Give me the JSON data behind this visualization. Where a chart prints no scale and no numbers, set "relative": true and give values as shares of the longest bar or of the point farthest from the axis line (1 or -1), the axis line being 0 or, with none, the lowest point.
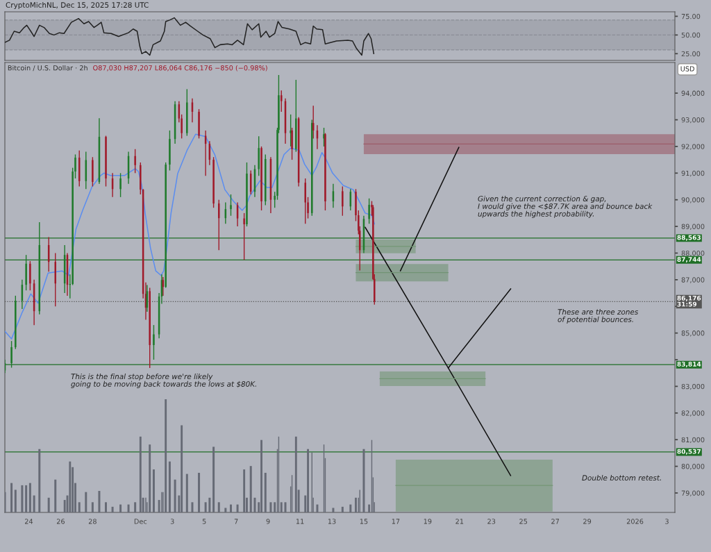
{
  "chart_data": [
    {
      "type": "line",
      "xlim": [
        "2025-11-22T12:00",
        "2026-01-03T12:00"
      ],
      "ylim": [
        16,
        81
      ],
      "yticks": [
        {
          "value": 75,
          "label": "75.00"
        },
        {
          "value": 50,
          "label": "50.00"
        },
        {
          "value": 25,
          "label": "25.00"
        }
      ],
      "tick_labels": "y",
      "bands": [
        {
          "axis": "y",
          "from": 30,
          "to": 70,
          "color": "#a3a6af"
        }
      ],
      "ref_lines": [
        {
          "axis": "y",
          "value": 70,
          "line_style": "dashed",
          "color": "#8a8d96"
        },
        {
          "axis": "y",
          "value": 50,
          "line_style": "dashed",
          "color": "#8a8d96"
        },
        {
          "axis": "y",
          "value": 30,
          "line_style": "dashed",
          "color": "#8a8d96"
        }
      ],
      "series": [
        {
          "color": "#222222",
          "x": [
            "2025-11-22T12:00",
            "2025-11-22T19:00",
            "2025-11-23T02:00",
            "2025-11-23T10:00",
            "2025-11-23T17:00",
            "2025-11-23T21:00",
            "2025-11-24T03:00",
            "2025-11-24T08:00",
            "2025-11-24T16:00",
            "2025-11-24T23:00",
            "2025-11-25T07:00",
            "2025-11-25T14:00",
            "2025-11-25T22:00",
            "2025-11-26T05:00",
            "2025-11-26T16:00",
            "2025-11-27T03:00",
            "2025-11-27T11:00",
            "2025-11-27T18:00",
            "2025-11-28T02:00",
            "2025-11-28T07:00",
            "2025-11-28T13:00",
            "2025-11-28T17:00",
            "2025-11-29T04:00",
            "2025-11-29T15:00",
            "2025-11-30T06:00",
            "2025-11-30T13:00",
            "2025-11-30T19:00",
            "2025-11-30T23:00",
            "2025-12-01T02:00",
            "2025-12-01T08:00",
            "2025-12-01T14:00",
            "2025-12-01T19:00",
            "2025-12-02T06:00",
            "2025-12-02T12:00",
            "2025-12-02T14:00",
            "2025-12-02T20:00",
            "2025-12-03T03:00",
            "2025-12-03T12:00",
            "2025-12-03T20:00",
            "2025-12-04T03:00",
            "2025-12-04T14:00",
            "2025-12-04T22:00",
            "2025-12-05T09:00",
            "2025-12-05T16:00",
            "2025-12-06T00:00",
            "2025-12-06T11:00",
            "2025-12-06T18:00",
            "2025-12-07T02:00",
            "2025-12-07T11:00",
            "2025-12-07T17:00",
            "2025-12-08T00:00",
            "2025-12-08T10:00",
            "2025-12-08T13:00",
            "2025-12-08T21:00",
            "2025-12-09T02:00",
            "2025-12-09T10:00",
            "2025-12-09T15:00",
            "2025-12-09T21:00",
            "2025-12-10T08:00",
            "2025-12-10T18:00",
            "2025-12-11T01:00",
            "2025-12-11T08:00",
            "2025-12-11T16:00",
            "2025-12-11T20:00",
            "2025-12-12T01:00",
            "2025-12-12T10:00",
            "2025-12-12T14:00",
            "2025-12-13T07:00",
            "2025-12-14T00:00",
            "2025-12-14T07:00",
            "2025-12-14T13:00",
            "2025-12-14T21:00",
            "2025-12-15T00:00",
            "2025-12-15T07:00",
            "2025-12-15T11:00",
            "2025-12-15T15:00"
          ],
          "values": [
            40,
            43,
            55,
            53,
            60,
            63,
            55,
            48,
            63,
            60,
            52,
            50,
            53,
            52,
            67,
            72,
            65,
            68,
            60,
            63,
            67,
            53,
            52,
            48,
            53,
            58,
            55,
            35,
            25,
            28,
            23,
            37,
            42,
            55,
            68,
            70,
            73,
            63,
            67,
            62,
            55,
            50,
            45,
            33,
            37,
            38,
            37,
            43,
            37,
            65,
            57,
            65,
            47,
            55,
            47,
            52,
            68,
            60,
            58,
            55,
            37,
            40,
            38,
            62,
            58,
            57,
            38,
            42,
            43,
            42,
            32,
            23,
            42,
            52,
            45,
            25
          ]
        }
      ]
    },
    {
      "type": "candlestick",
      "title": "Bitcoin / U.S. Dollar · 2h",
      "subtitle": "O87,030 H87,207 L86,064 C86,176 −850 (−0.98%)",
      "ylabel": "USD",
      "xlim": [
        "2025-11-22T12:00",
        "2026-01-03T12:00"
      ],
      "ylim": [
        78270,
        95150
      ],
      "xticks": [
        {
          "value": "2025-11-24",
          "label": "24"
        },
        {
          "value": "2025-11-26",
          "label": "26"
        },
        {
          "value": "2025-11-28",
          "label": "28"
        },
        {
          "value": "2025-12-01",
          "label": "Dec"
        },
        {
          "value": "2025-12-03",
          "label": "3"
        },
        {
          "value": "2025-12-05",
          "label": "5"
        },
        {
          "value": "2025-12-07",
          "label": "7"
        },
        {
          "value": "2025-12-09",
          "label": "9"
        },
        {
          "value": "2025-12-11",
          "label": "11"
        },
        {
          "value": "2025-12-13",
          "label": "13"
        },
        {
          "value": "2025-12-15",
          "label": "15"
        },
        {
          "value": "2025-12-17",
          "label": "17"
        },
        {
          "value": "2025-12-19",
          "label": "19"
        },
        {
          "value": "2025-12-21",
          "label": "21"
        },
        {
          "value": "2025-12-23",
          "label": "23"
        },
        {
          "value": "2025-12-25",
          "label": "25"
        },
        {
          "value": "2025-12-27",
          "label": "27"
        },
        {
          "value": "2025-12-29",
          "label": "29"
        },
        {
          "value": "2026-01-01",
          "label": "2026"
        },
        {
          "value": "2026-01-03",
          "label": "3"
        }
      ],
      "yticks": [
        {
          "value": 79000,
          "label": "79,000"
        },
        {
          "value": 80000,
          "label": "80,000"
        },
        {
          "value": 81000,
          "label": "81,000"
        },
        {
          "value": 82000,
          "label": "82,000"
        },
        {
          "value": 83000,
          "label": "83,000"
        },
        {
          "value": 84000,
          "label": null
        },
        {
          "value": 85000,
          "label": "85,000"
        },
        {
          "value": 86000,
          "label": null
        },
        {
          "value": 87000,
          "label": "87,000"
        },
        {
          "value": 88000,
          "label": "88,000"
        },
        {
          "value": 89000,
          "label": "89,000"
        },
        {
          "value": 90000,
          "label": "90,000"
        },
        {
          "value": 91000,
          "label": "91,000"
        },
        {
          "value": 92000,
          "label": "92,000"
        },
        {
          "value": 93000,
          "label": "93,000"
        },
        {
          "value": 94000,
          "label": "94,000"
        }
      ],
      "x": [
        "2025-11-22T12:00",
        "2025-11-22T22:00",
        "2025-11-23T04:00",
        "2025-11-23T14:00",
        "2025-11-23T20:00",
        "2025-11-24T02:00",
        "2025-11-24T08:00",
        "2025-11-24T16:00",
        "2025-11-25T06:00",
        "2025-11-25T16:00",
        "2025-11-26T06:00",
        "2025-11-26T10:00",
        "2025-11-26T14:00",
        "2025-11-26T18:00",
        "2025-11-26T22:00",
        "2025-11-27T04:00",
        "2025-11-27T14:00",
        "2025-11-28T00:00",
        "2025-11-28T10:00",
        "2025-11-28T20:00",
        "2025-11-29T06:00",
        "2025-11-29T18:00",
        "2025-11-30T06:00",
        "2025-11-30T16:00",
        "2025-12-01T00:00",
        "2025-12-01T04:00",
        "2025-12-01T08:00",
        "2025-12-01T10:00",
        "2025-12-01T14:00",
        "2025-12-01T20:00",
        "2025-12-02T04:00",
        "2025-12-02T08:00",
        "2025-12-02T10:00",
        "2025-12-02T14:00",
        "2025-12-02T20:00",
        "2025-12-03T04:00",
        "2025-12-03T10:00",
        "2025-12-03T14:00",
        "2025-12-03T22:00",
        "2025-12-04T06:00",
        "2025-12-04T16:00",
        "2025-12-05T02:00",
        "2025-12-05T08:00",
        "2025-12-05T14:00",
        "2025-12-05T22:00",
        "2025-12-06T08:00",
        "2025-12-06T16:00",
        "2025-12-07T02:00",
        "2025-12-07T12:00",
        "2025-12-07T16:00",
        "2025-12-07T22:00",
        "2025-12-08T04:00",
        "2025-12-08T10:00",
        "2025-12-08T14:00",
        "2025-12-08T20:00",
        "2025-12-09T04:00",
        "2025-12-09T10:00",
        "2025-12-09T14:00",
        "2025-12-09T16:00",
        "2025-12-09T20:00",
        "2025-12-10T02:00",
        "2025-12-10T10:00",
        "2025-12-10T12:00",
        "2025-12-10T18:00",
        "2025-12-10T22:00",
        "2025-12-11T08:00",
        "2025-12-11T12:00",
        "2025-12-11T18:00",
        "2025-12-11T20:00",
        "2025-12-12T02:00",
        "2025-12-12T12:00",
        "2025-12-12T14:00",
        "2025-12-13T02:00",
        "2025-12-13T16:00",
        "2025-12-14T04:00",
        "2025-12-14T12:00",
        "2025-12-14T16:00",
        "2025-12-14T18:00",
        "2025-12-15T00:00",
        "2025-12-15T08:00",
        "2025-12-15T12:00",
        "2025-12-15T14:00",
        "2025-12-15T16:00"
      ],
      "ohlc": [
        [
          83600,
          84000,
          83500,
          83870
        ],
        [
          83870,
          84700,
          83700,
          84470
        ],
        [
          84470,
          86400,
          84400,
          86210
        ],
        [
          86210,
          87000,
          85900,
          86810
        ],
        [
          86810,
          87930,
          86600,
          87600
        ],
        [
          87600,
          87700,
          86600,
          86860
        ],
        [
          86860,
          87000,
          85300,
          85820
        ],
        [
          85820,
          89160,
          85700,
          88300
        ],
        [
          88300,
          88600,
          87300,
          87670
        ],
        [
          87670,
          88000,
          86000,
          86860
        ],
        [
          86860,
          88300,
          86500,
          87930
        ],
        [
          87930,
          88000,
          86400,
          86810
        ],
        [
          86810,
          87200,
          86300,
          86840
        ],
        [
          86840,
          91200,
          86800,
          91060
        ],
        [
          91060,
          91700,
          90800,
          91580
        ],
        [
          91580,
          91850,
          90500,
          90700
        ],
        [
          90700,
          91800,
          90400,
          91490
        ],
        [
          91490,
          91600,
          90500,
          90670
        ],
        [
          90670,
          93060,
          90600,
          92360
        ],
        [
          92360,
          92400,
          90500,
          90800
        ],
        [
          90800,
          91000,
          90100,
          90400
        ],
        [
          90400,
          91000,
          90100,
          90800
        ],
        [
          90800,
          91800,
          90600,
          91640
        ],
        [
          91640,
          91900,
          91000,
          91300
        ],
        [
          91300,
          91400,
          90200,
          90380
        ],
        [
          90380,
          90400,
          86300,
          86470
        ],
        [
          86470,
          86900,
          85500,
          85950
        ],
        [
          85950,
          86800,
          85800,
          86570
        ],
        [
          86570,
          86700,
          83690,
          84550
        ],
        [
          84550,
          85300,
          84000,
          84950
        ],
        [
          84950,
          86500,
          84800,
          86370
        ],
        [
          86370,
          87200,
          86100,
          86990
        ],
        [
          86990,
          87100,
          86400,
          86730
        ],
        [
          86730,
          91400,
          86700,
          91320
        ],
        [
          91320,
          92600,
          91100,
          92280
        ],
        [
          92280,
          93700,
          92100,
          93580
        ],
        [
          93580,
          93700,
          92900,
          93050
        ],
        [
          93050,
          93200,
          92300,
          92500
        ],
        [
          92500,
          94150,
          92400,
          93650
        ],
        [
          93650,
          93800,
          92900,
          93300
        ],
        [
          93300,
          93400,
          92300,
          92400
        ],
        [
          92400,
          92600,
          90900,
          92100
        ],
        [
          92100,
          92200,
          91300,
          91500
        ],
        [
          91500,
          91600,
          89700,
          89860
        ],
        [
          89860,
          90000,
          88110,
          89310
        ],
        [
          89310,
          89900,
          89100,
          89650
        ],
        [
          89650,
          90200,
          89400,
          89800
        ],
        [
          89800,
          89900,
          89000,
          89300
        ],
        [
          89300,
          89500,
          87744,
          89080
        ],
        [
          89080,
          91400,
          89000,
          90980
        ],
        [
          90980,
          91100,
          90200,
          90300
        ],
        [
          90300,
          91300,
          90100,
          91150
        ],
        [
          91150,
          92380,
          90900,
          91940
        ],
        [
          91940,
          92000,
          89600,
          89940
        ],
        [
          89940,
          91700,
          89800,
          91530
        ],
        [
          91530,
          91600,
          89500,
          90000
        ],
        [
          90000,
          90300,
          89700,
          90150
        ],
        [
          90150,
          92700,
          90000,
          92620
        ],
        [
          92620,
          94680,
          92500,
          93920
        ],
        [
          93920,
          94100,
          93300,
          93700
        ],
        [
          93700,
          93800,
          92100,
          92500
        ],
        [
          92500,
          93200,
          92000,
          92600
        ],
        [
          92600,
          92700,
          91500,
          91900
        ],
        [
          91900,
          94500,
          91800,
          93050
        ],
        [
          93050,
          93100,
          90500,
          90640
        ],
        [
          90640,
          90800,
          89100,
          89900
        ],
        [
          89900,
          90100,
          89300,
          89500
        ],
        [
          89500,
          93000,
          89400,
          92880
        ],
        [
          92880,
          93530,
          92300,
          92600
        ],
        [
          92600,
          92800,
          91900,
          92300
        ],
        [
          92300,
          92700,
          92000,
          92460
        ],
        [
          92460,
          92500,
          89600,
          89940
        ],
        [
          89940,
          90600,
          89700,
          90320
        ],
        [
          90320,
          90500,
          89400,
          89750
        ],
        [
          89750,
          90400,
          89600,
          90300
        ],
        [
          90300,
          90400,
          89200,
          89420
        ],
        [
          89420,
          89600,
          88700,
          88840
        ],
        [
          88840,
          89000,
          87350,
          88110
        ],
        [
          88110,
          89400,
          88000,
          89280
        ],
        [
          89280,
          90050,
          89100,
          89810
        ],
        [
          89810,
          89950,
          89400,
          89720
        ],
        [
          89720,
          89800,
          87000,
          87030
        ],
        [
          87030,
          87207,
          86064,
          86176
        ]
      ],
      "series": [
        {
          "type": "line",
          "color": "#5b8def",
          "x": [
            "2025-11-22T12:00",
            "2025-11-22T22:00",
            "2025-11-23T14:00",
            "2025-11-24T03:00",
            "2025-11-24T14:00",
            "2025-11-25T05:00",
            "2025-11-26T02:00",
            "2025-11-26T12:00",
            "2025-11-26T23:00",
            "2025-11-27T09:00",
            "2025-11-27T23:00",
            "2025-11-28T12:00",
            "2025-11-28T17:00",
            "2025-11-29T03:00",
            "2025-11-30T00:00",
            "2025-11-30T16:00",
            "2025-11-30T21:00",
            "2025-12-01T02:00",
            "2025-12-01T07:00",
            "2025-12-01T15:00",
            "2025-12-01T23:00",
            "2025-12-02T07:00",
            "2025-12-02T11:00",
            "2025-12-02T15:00",
            "2025-12-02T22:00",
            "2025-12-03T08:00",
            "2025-12-03T22:00",
            "2025-12-04T11:00",
            "2025-12-05T02:00",
            "2025-12-05T16:00",
            "2025-12-06T07:00",
            "2025-12-06T20:00",
            "2025-12-07T09:00",
            "2025-12-07T15:00",
            "2025-12-07T20:00",
            "2025-12-08T12:00",
            "2025-12-08T22:00",
            "2025-12-09T06:00",
            "2025-12-09T14:00",
            "2025-12-10T00:00",
            "2025-12-10T10:00",
            "2025-12-10T23:00",
            "2025-12-11T07:00",
            "2025-12-11T18:00",
            "2025-12-12T01:00",
            "2025-12-12T09:00",
            "2025-12-12T15:00",
            "2025-12-13T01:00",
            "2025-12-13T17:00",
            "2025-12-14T08:00",
            "2025-12-14T19:00",
            "2025-12-15T02:00",
            "2025-12-15T12:00",
            "2025-12-15T16:00"
          ],
          "values": [
            85070,
            84780,
            85770,
            86470,
            86120,
            87250,
            87330,
            87160,
            88900,
            89600,
            90480,
            90910,
            91000,
            90910,
            90910,
            91170,
            91060,
            90540,
            89500,
            88200,
            87330,
            87160,
            87330,
            88030,
            89500,
            90980,
            91850,
            92460,
            92370,
            91680,
            90380,
            89940,
            89600,
            89770,
            90120,
            90720,
            90460,
            90460,
            91000,
            91700,
            91940,
            91850,
            91330,
            90910,
            91240,
            91770,
            91530,
            91000,
            90540,
            90380,
            89860,
            89500,
            89420,
            89090
          ]
        },
        {
          "type": "line",
          "color": "#111111",
          "x": [
            "2025-12-15T02:00",
            "2025-12-20T07:00",
            "2025-12-24T05:00"
          ],
          "values": [
            88970,
            83690,
            79650
          ]
        },
        {
          "type": "line",
          "color": "#111111",
          "x": [
            "2025-12-17T07:00",
            "2025-12-20T23:00"
          ],
          "values": [
            87330,
            91970
          ]
        },
        {
          "type": "line",
          "color": "#111111",
          "x": [
            "2025-12-20T07:00",
            "2025-12-24T05:00"
          ],
          "values": [
            83690,
            86660
          ]
        },
        {
          "type": "line",
          "color": "#9b5b69",
          "x": [
            "2025-12-15T00:00",
            "2026-01-03T12:00"
          ],
          "values": [
            92090,
            92090
          ],
          "lower": [
            91710,
            91710
          ],
          "upper": [
            92460,
            92460
          ]
        },
        {
          "type": "line",
          "color": "#749776",
          "x": [
            "2025-12-14T12:00",
            "2025-12-18T06:00"
          ],
          "values": [
            88250,
            88250
          ],
          "lower": [
            87990,
            87990
          ],
          "upper": [
            88510,
            88510
          ]
        },
        {
          "type": "line",
          "color": "#719474",
          "x": [
            "2025-12-14T12:00",
            "2025-12-20T07:00"
          ],
          "values": [
            87270,
            87270
          ],
          "lower": [
            86940,
            86940
          ],
          "upper": [
            87590,
            87590
          ]
        },
        {
          "type": "line",
          "color": "#749776",
          "x": [
            "2025-12-16T00:00",
            "2025-12-22T15:00"
          ],
          "values": [
            83290,
            83290
          ],
          "lower": [
            83010,
            83010
          ],
          "upper": [
            83560,
            83560
          ]
        },
        {
          "type": "line",
          "color": "#749776",
          "x": [
            "2025-12-17T00:00",
            "2025-12-26T20:00"
          ],
          "values": [
            79280,
            79280
          ],
          "lower": [
            78300,
            78300
          ],
          "upper": [
            80250,
            80250
          ]
        }
      ],
      "ref_lines": [
        {
          "axis": "y",
          "value": 88563,
          "label": "88,563",
          "color": "#1f6f26"
        },
        {
          "axis": "y",
          "value": 87744,
          "label": "87,744",
          "color": "#1f6f26"
        },
        {
          "axis": "y",
          "value": 86176,
          "label": "86,176\n31:59",
          "color": "#555555",
          "line_style": "dotted"
        },
        {
          "axis": "y",
          "value": 83814,
          "label": "83,814",
          "color": "#1f6f26"
        },
        {
          "axis": "y",
          "value": 80537,
          "label": "80,537",
          "color": "#1f6f26"
        }
      ],
      "annotations": [
        "CryptoMichNL, Dec 15, 2025 17:28 UTC",
        "Given the current correction & gap,\nI would give the <$87.7K area and bounce back\nupwards the highest probability.",
        "These are three zones\nof potential bounces.",
        "This is the final stop before we're likely\ngoing to be moving back towards the lows at $80K.",
        "Double bottom retest."
      ]
    },
    {
      "type": "bar",
      "relative": true,
      "tick_labels": false,
      "color": "#666a75",
      "xlim": [
        "2025-11-22T12:00",
        "2026-01-03T12:00"
      ],
      "x": [
        "2025-11-22T12:00",
        "2025-11-22T22:00",
        "2025-11-23T04:00",
        "2025-11-23T14:00",
        "2025-11-23T20:00",
        "2025-11-24T02:00",
        "2025-11-24T08:00",
        "2025-11-24T16:00",
        "2025-11-25T06:00",
        "2025-11-25T16:00",
        "2025-11-26T06:00",
        "2025-11-26T10:00",
        "2025-11-26T14:00",
        "2025-11-26T18:00",
        "2025-11-26T22:00",
        "2025-11-27T04:00",
        "2025-11-27T14:00",
        "2025-11-28T00:00",
        "2025-11-28T10:00",
        "2025-11-28T20:00",
        "2025-11-29T06:00",
        "2025-11-29T18:00",
        "2025-11-30T06:00",
        "2025-11-30T16:00",
        "2025-12-01T00:00",
        "2025-12-01T04:00",
        "2025-12-01T08:00",
        "2025-12-01T10:00",
        "2025-12-01T14:00",
        "2025-12-01T20:00",
        "2025-12-02T04:00",
        "2025-12-02T08:00",
        "2025-12-02T10:00",
        "2025-12-02T14:00",
        "2025-12-02T20:00",
        "2025-12-03T04:00",
        "2025-12-03T10:00",
        "2025-12-03T14:00",
        "2025-12-03T22:00",
        "2025-12-04T06:00",
        "2025-12-04T16:00",
        "2025-12-05T02:00",
        "2025-12-05T08:00",
        "2025-12-05T14:00",
        "2025-12-05T22:00",
        "2025-12-06T08:00",
        "2025-12-06T16:00",
        "2025-12-07T02:00",
        "2025-12-07T12:00",
        "2025-12-07T16:00",
        "2025-12-07T22:00",
        "2025-12-08T04:00",
        "2025-12-08T10:00",
        "2025-12-08T14:00",
        "2025-12-08T20:00",
        "2025-12-09T04:00",
        "2025-12-09T10:00",
        "2025-12-09T14:00",
        "2025-12-09T16:00",
        "2025-12-09T20:00",
        "2025-12-10T02:00",
        "2025-12-10T10:00",
        "2025-12-10T12:00",
        "2025-12-10T18:00",
        "2025-12-10T22:00",
        "2025-12-11T08:00",
        "2025-12-11T12:00",
        "2025-12-11T18:00",
        "2025-12-11T20:00",
        "2025-12-12T02:00",
        "2025-12-12T12:00",
        "2025-12-12T14:00",
        "2025-12-13T02:00",
        "2025-12-13T16:00",
        "2025-12-14T04:00",
        "2025-12-14T12:00",
        "2025-12-14T16:00",
        "2025-12-14T18:00",
        "2025-12-15T00:00",
        "2025-12-15T08:00",
        "2025-12-15T12:00",
        "2025-12-15T14:00",
        "2025-12-15T16:00"
      ],
      "values": [
        0.18,
        0.26,
        0.2,
        0.24,
        0.24,
        0.26,
        0.15,
        0.56,
        0.13,
        0.29,
        0.11,
        0.15,
        0.45,
        0.4,
        0.26,
        0.09,
        0.18,
        0.09,
        0.19,
        0.09,
        0.05,
        0.07,
        0.07,
        0.09,
        0.67,
        0.13,
        0.13,
        0.09,
        0.6,
        0.38,
        0.11,
        0.18,
        0.18,
        1.0,
        0.45,
        0.29,
        0.15,
        0.77,
        0.34,
        0.09,
        0.35,
        0.09,
        0.13,
        0.58,
        0.09,
        0.04,
        0.07,
        0.07,
        0.38,
        0.13,
        0.41,
        0.13,
        0.09,
        0.64,
        0.35,
        0.09,
        0.09,
        0.56,
        0.67,
        0.09,
        0.09,
        0.23,
        0.33,
        0.67,
        0.2,
        0.15,
        0.56,
        0.53,
        0.13,
        0.07,
        0.6,
        0.48,
        0.04,
        0.05,
        0.07,
        0.13,
        0.13,
        0.2,
        0.56,
        0.07,
        0.64,
        0.31,
        0.09
      ]
    }
  ]
}
